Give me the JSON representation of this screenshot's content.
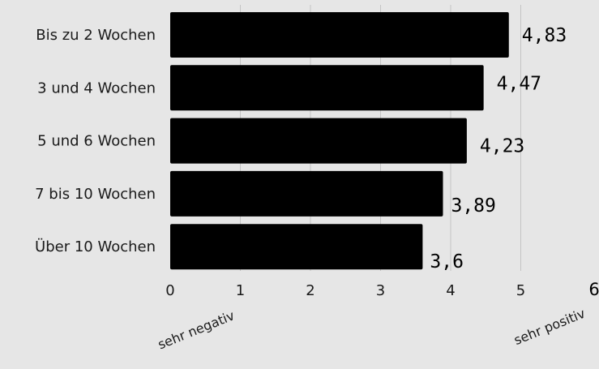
{
  "chart_data": {
    "type": "bar",
    "orientation": "horizontal",
    "categories": [
      "Bis zu 2 Wochen",
      "3 und 4 Wochen",
      "5 und 6 Wochen",
      "7 bis 10 Wochen",
      "Über 10 Wochen"
    ],
    "values": [
      4.83,
      4.47,
      4.23,
      3.89,
      3.6
    ],
    "value_labels": [
      "4,83",
      "4,47",
      "4,23",
      "3,89",
      "3,6"
    ],
    "xlim": [
      0,
      6
    ],
    "x_ticks": [
      "0",
      "1",
      "2",
      "3",
      "4",
      "5",
      "6"
    ],
    "scale_labels": {
      "low": "sehr negativ",
      "high": "sehr positiv"
    },
    "grid": "vertical",
    "colors": {
      "bar": "#000000",
      "background": "#e6e6e6",
      "grid": "#c4c4c4"
    }
  }
}
